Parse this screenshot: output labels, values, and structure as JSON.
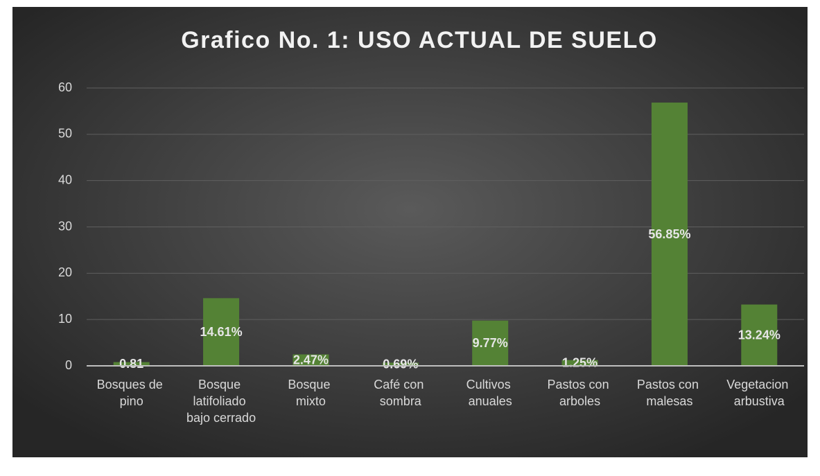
{
  "chart_data": {
    "type": "bar",
    "title": "Grafico No. 1: USO ACTUAL DE SUELO",
    "categories": [
      "Bosques de\npino",
      "Bosque\nlatifoliado\nbajo cerrado",
      "Bosque\nmixto",
      "Café con\nsombra",
      "Cultivos\nanuales",
      "Pastos con\narboles",
      "Pastos con\nmalesas",
      "Vegetacion\narbustiva"
    ],
    "values": [
      0.81,
      14.61,
      2.47,
      0.69,
      9.77,
      1.25,
      56.85,
      13.24
    ],
    "value_labels": [
      "0.81",
      "14.61%",
      "2.47%",
      "0.69%",
      "9.77%",
      "1.25%",
      "56.85%",
      "13.24%"
    ],
    "color": "#548235",
    "ylim": [
      0,
      60
    ],
    "yticks": [
      0,
      10,
      20,
      30,
      40,
      50,
      60
    ],
    "grid": true
  }
}
